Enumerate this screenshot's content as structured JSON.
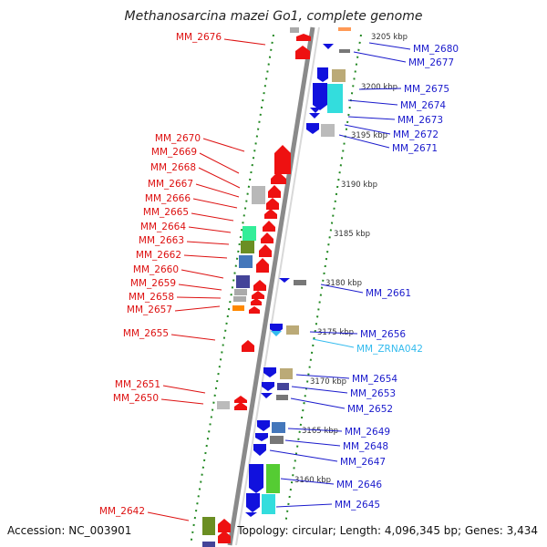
{
  "title": "Methanosarcina mazei Go1, complete genome",
  "accession": "Accession: NC_003901",
  "topology": "Topology: circular; Length: 4,096,345 bp; Genes: 3,434",
  "colors": {
    "forward_label": "#dd1111",
    "reverse_label": "#1a1acc",
    "rna_label": "#33bbee",
    "backbone": "#888888",
    "scale_dots": "#228822"
  },
  "kbp_ticks": [
    "3205 kbp",
    "3200 kbp",
    "3195 kbp",
    "3190 kbp",
    "3185 kbp",
    "3180 kbp",
    "3175 kbp",
    "3170 kbp",
    "3165 kbp",
    "3160 kbp"
  ],
  "left_genes": [
    "MM_2676",
    "MM_2670",
    "MM_2669",
    "MM_2668",
    "MM_2667",
    "MM_2666",
    "MM_2665",
    "MM_2664",
    "MM_2663",
    "MM_2662",
    "MM_2660",
    "MM_2659",
    "MM_2658",
    "MM_2657",
    "MM_2655",
    "MM_2651",
    "MM_2650",
    "MM_2642"
  ],
  "right_genes": [
    "MM_2680",
    "MM_2677",
    "MM_2675",
    "MM_2674",
    "MM_2673",
    "MM_2672",
    "MM_2671",
    "MM_2661",
    "MM_2656",
    "MM_ZRNA042",
    "MM_2654",
    "MM_2653",
    "MM_2652",
    "MM_2649",
    "MM_2648",
    "MM_2647",
    "MM_2646",
    "MM_2645"
  ]
}
